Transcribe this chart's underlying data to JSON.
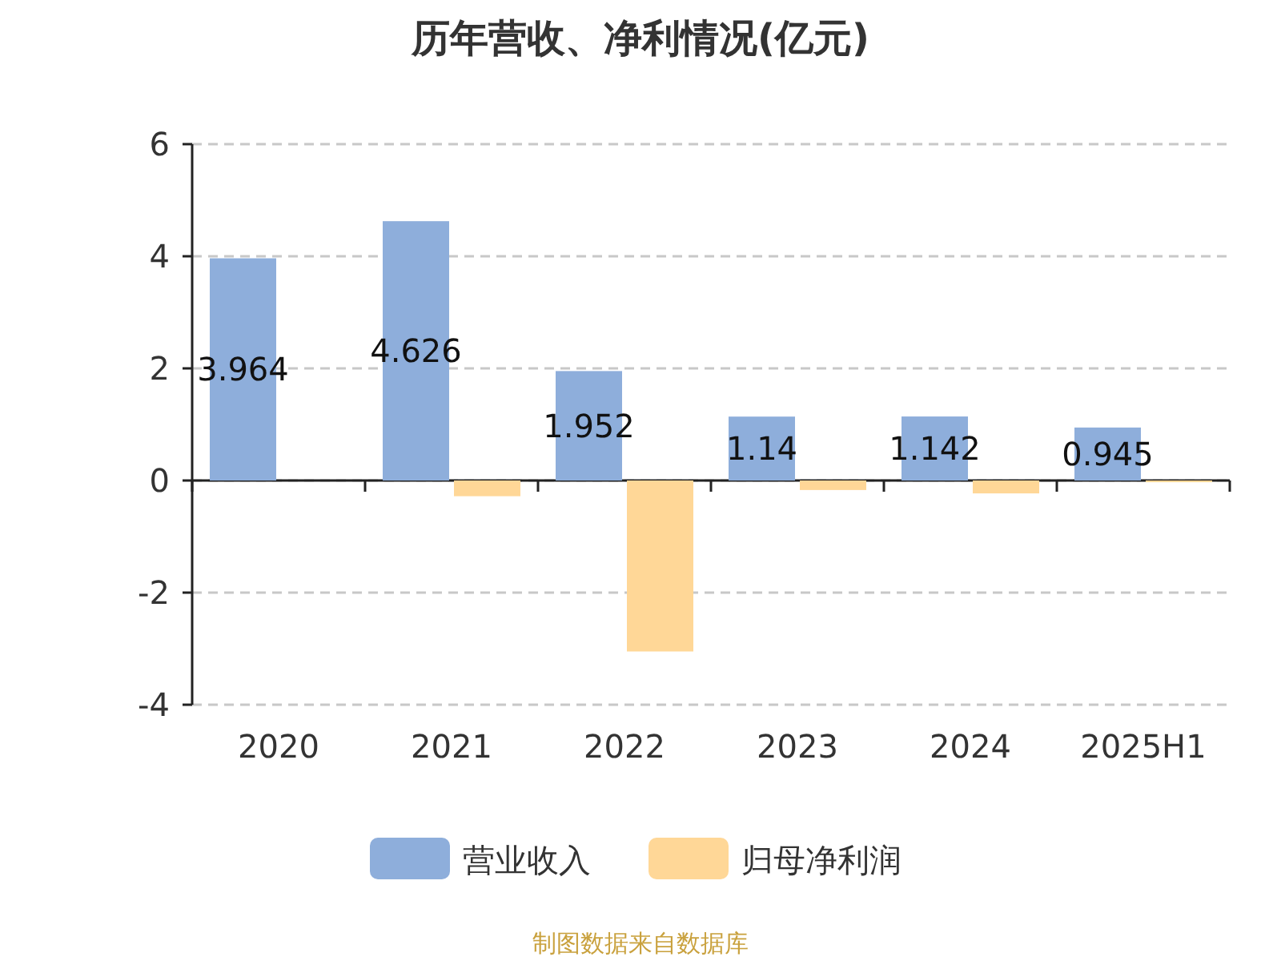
{
  "chart_data": {
    "type": "bar",
    "title": "历年营收、净利情况(亿元)",
    "categories": [
      "2020",
      "2021",
      "2022",
      "2023",
      "2024",
      "2025H1"
    ],
    "series": [
      {
        "name": "营业收入",
        "color": "#8eaedb",
        "values": [
          3.964,
          4.626,
          1.952,
          1.14,
          1.142,
          0.945
        ],
        "value_labels": [
          "3.964",
          "4.626",
          "1.952",
          "1.14",
          "1.142",
          "0.945"
        ]
      },
      {
        "name": "归母净利润",
        "color": "#ffd797",
        "values": [
          null,
          -0.28,
          -3.05,
          -0.17,
          -0.23,
          -0.03
        ]
      }
    ],
    "ylim": [
      -4,
      6
    ],
    "yticks": [
      -4,
      -2,
      0,
      2,
      4,
      6
    ],
    "grid": "y",
    "legend": "bottom",
    "annotations": [
      "制图数据来自数据库"
    ]
  }
}
